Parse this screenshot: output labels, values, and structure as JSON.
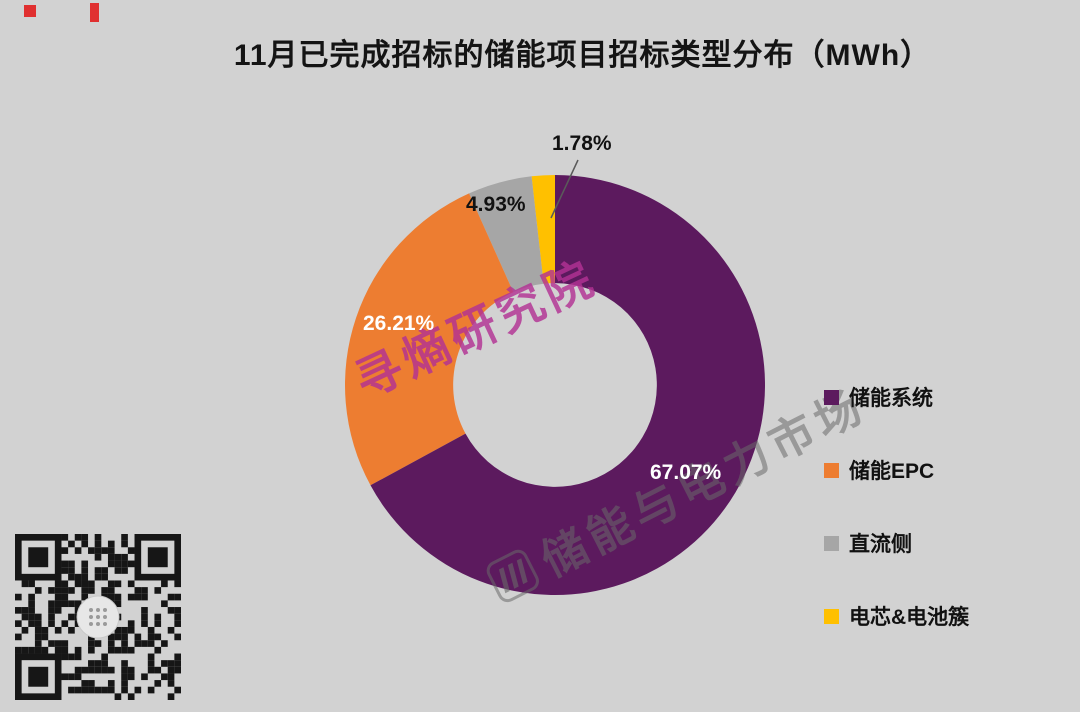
{
  "title": "11月已完成招标的储能项目招标类型分布（MWh）",
  "chart_data": {
    "type": "pie",
    "subtype": "donut",
    "title": "11月已完成招标的储能项目招标类型分布（MWh）",
    "unit": "MWh",
    "categories": [
      "储能系统",
      "储能EPC",
      "直流侧",
      "电芯&电池簇"
    ],
    "values": [
      67.07,
      26.21,
      4.93,
      1.78
    ],
    "labels": [
      "67.07%",
      "26.21%",
      "4.93%",
      "1.78%"
    ],
    "colors": [
      "#5c1a5e",
      "#ed7d31",
      "#a6a6a6",
      "#ffc000"
    ],
    "start_angle_deg": 0,
    "direction": "clockwise",
    "inner_radius_ratio": 0.485,
    "legend_position": "right",
    "background": "#d2d2d2"
  },
  "legend": {
    "items": [
      {
        "label": "储能系统",
        "color": "#5c1a5e"
      },
      {
        "label": "储能EPC",
        "color": "#ed7d31"
      },
      {
        "label": "直流侧",
        "color": "#a6a6a6"
      },
      {
        "label": "电芯&电池簇",
        "color": "#ffc000"
      }
    ]
  },
  "watermarks": {
    "primary": "寻熵研究院",
    "secondary": "储能与电力市场"
  }
}
